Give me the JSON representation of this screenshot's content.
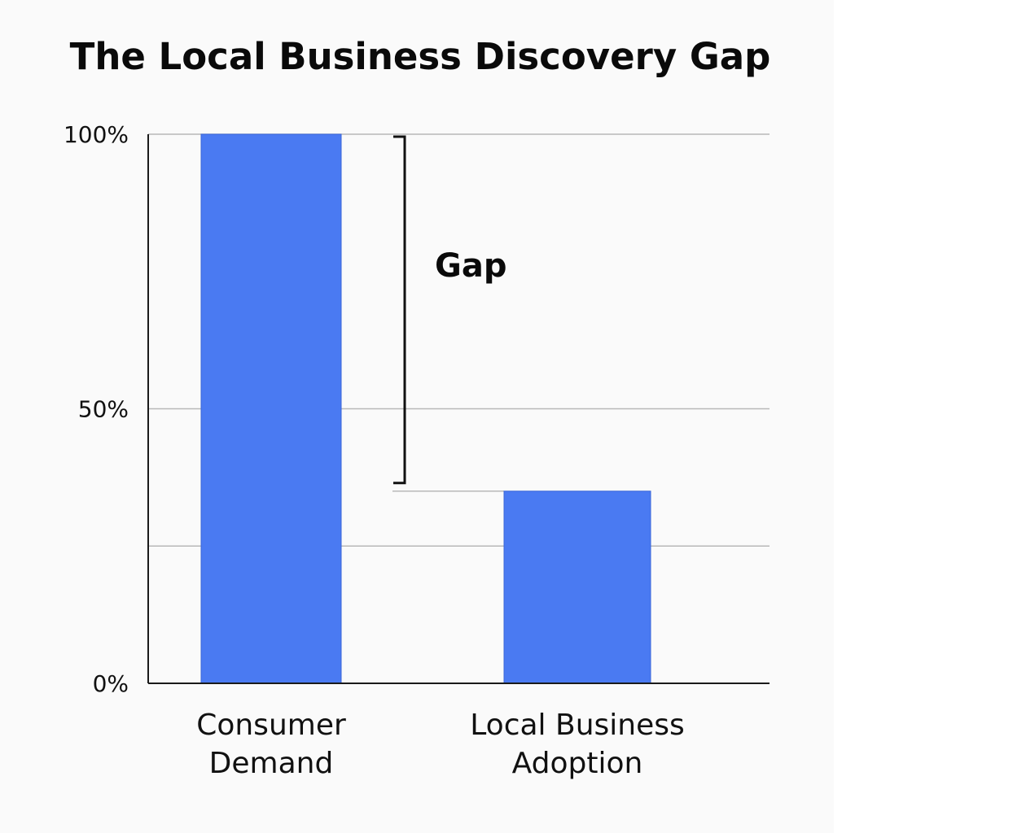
{
  "chart_data": {
    "type": "bar",
    "title": "The Local Business Discovery Gap",
    "categories": [
      [
        "Consumer",
        "Demand"
      ],
      [
        "Local Business",
        "Adoption"
      ]
    ],
    "values": [
      100,
      35
    ],
    "ylim": [
      0,
      100
    ],
    "y_ticks": [
      {
        "value": 100,
        "label": "100%"
      },
      {
        "value": 50,
        "label": "50%"
      },
      {
        "value": 0,
        "label": "0%"
      }
    ],
    "gridlines": [
      100,
      50,
      25
    ],
    "grid": true,
    "annotation": {
      "label": "Gap",
      "from": 100,
      "to": 35
    },
    "colors": {
      "bar": "#4a7af2",
      "bar_edge": "#3a66d8",
      "grid": "#b8b8b8",
      "axis": "#1a1a1a"
    }
  }
}
